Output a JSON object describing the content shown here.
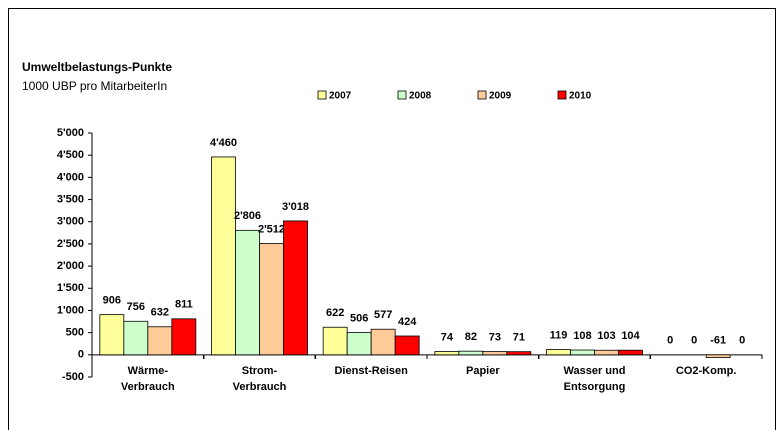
{
  "chart_data": {
    "type": "bar",
    "title": "Umweltbelastungs-Punkte",
    "subtitle": "1000 UBP pro MitarbeiterIn",
    "categories": [
      "Wärme-\nVerbrauch",
      "Strom-\nVerbrauch",
      "Dienst-Reisen",
      "Papier",
      "Wasser und\nEntsorgung",
      "CO2-Komp."
    ],
    "series": [
      {
        "name": "2007",
        "color": "#ffff99",
        "values": [
          906,
          4460,
          622,
          74,
          119,
          0
        ],
        "value_labels": [
          "906",
          "4'460",
          "622",
          "74",
          "119",
          "0"
        ]
      },
      {
        "name": "2008",
        "color": "#ccffcc",
        "values": [
          756,
          2806,
          506,
          82,
          108,
          0
        ],
        "value_labels": [
          "756",
          "2'806",
          "506",
          "82",
          "108",
          "0"
        ]
      },
      {
        "name": "2009",
        "color": "#ffcc99",
        "values": [
          632,
          2512,
          577,
          73,
          103,
          -61
        ],
        "value_labels": [
          "632",
          "2'512",
          "577",
          "73",
          "103",
          "-61"
        ]
      },
      {
        "name": "2010",
        "color": "#ff0000",
        "values": [
          811,
          3018,
          424,
          71,
          104,
          0
        ],
        "value_labels": [
          "811",
          "3'018",
          "424",
          "71",
          "104",
          "0"
        ]
      }
    ],
    "ylim": [
      -500,
      5000
    ],
    "yticks": [
      {
        "value": -500,
        "label": "-500"
      },
      0,
      500,
      {
        "value": 1000,
        "label": "1'000"
      },
      {
        "value": 1500,
        "label": "1'500"
      },
      {
        "value": 2000,
        "label": "2'000"
      },
      {
        "value": 2500,
        "label": "2'500"
      },
      {
        "value": 3000,
        "label": "3'000"
      },
      {
        "value": 3500,
        "label": "3'500"
      },
      {
        "value": 4000,
        "label": "4'000"
      },
      {
        "value": 4500,
        "label": "4'500"
      },
      {
        "value": 5000,
        "label": "5'000"
      }
    ],
    "grid": false
  }
}
